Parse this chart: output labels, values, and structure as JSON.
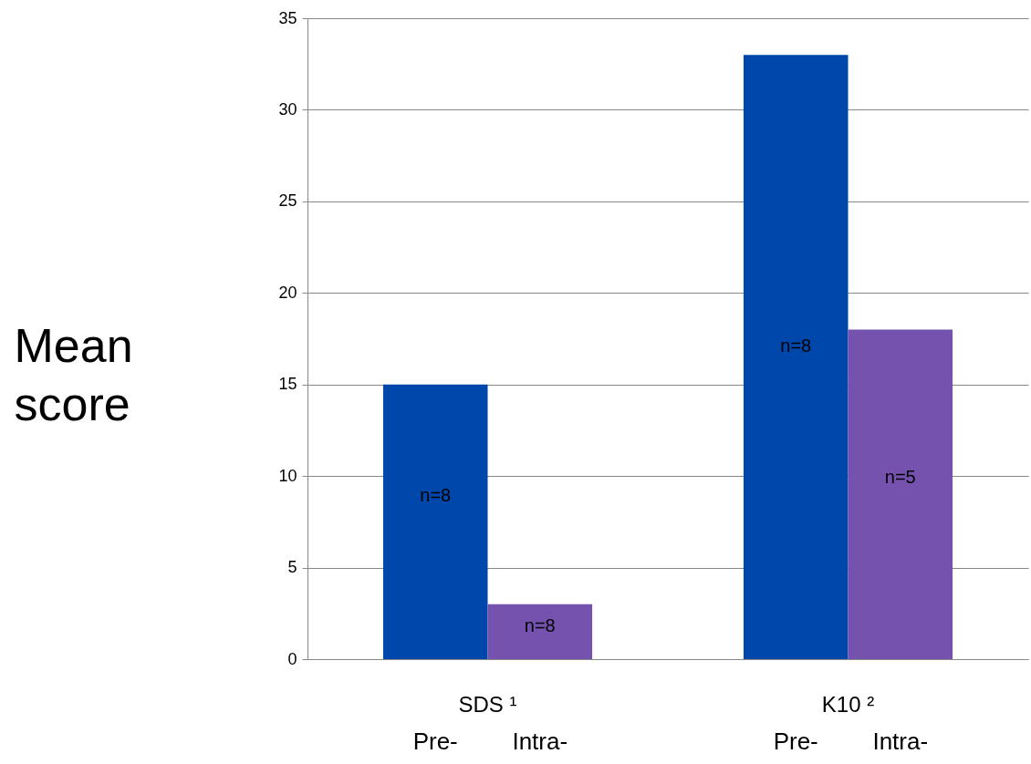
{
  "chart_data": {
    "type": "bar",
    "ylabel": "Mean score",
    "categories": [
      "SDS ¹",
      "K10 ²"
    ],
    "series": [
      {
        "name": "Pre-",
        "color": "#0047ab",
        "values": [
          15,
          33
        ]
      },
      {
        "name": "Intra-",
        "color": "#7552ae",
        "values": [
          3,
          18
        ]
      }
    ],
    "annotations": [
      {
        "text": "n=8",
        "x": "SDS ¹",
        "y": 8.9
      },
      {
        "text": "n=8",
        "x": "SDS ¹",
        "y": 1.8
      },
      {
        "text": "n=8",
        "x": "K10 ²",
        "y": 17.1
      },
      {
        "text": "n=5",
        "x": "K10 ²",
        "y": 9.9
      }
    ],
    "ylim": [
      0,
      35
    ],
    "yticks": [
      0,
      5,
      10,
      15,
      20,
      25,
      30,
      35
    ],
    "grid": "y",
    "legend": false
  }
}
